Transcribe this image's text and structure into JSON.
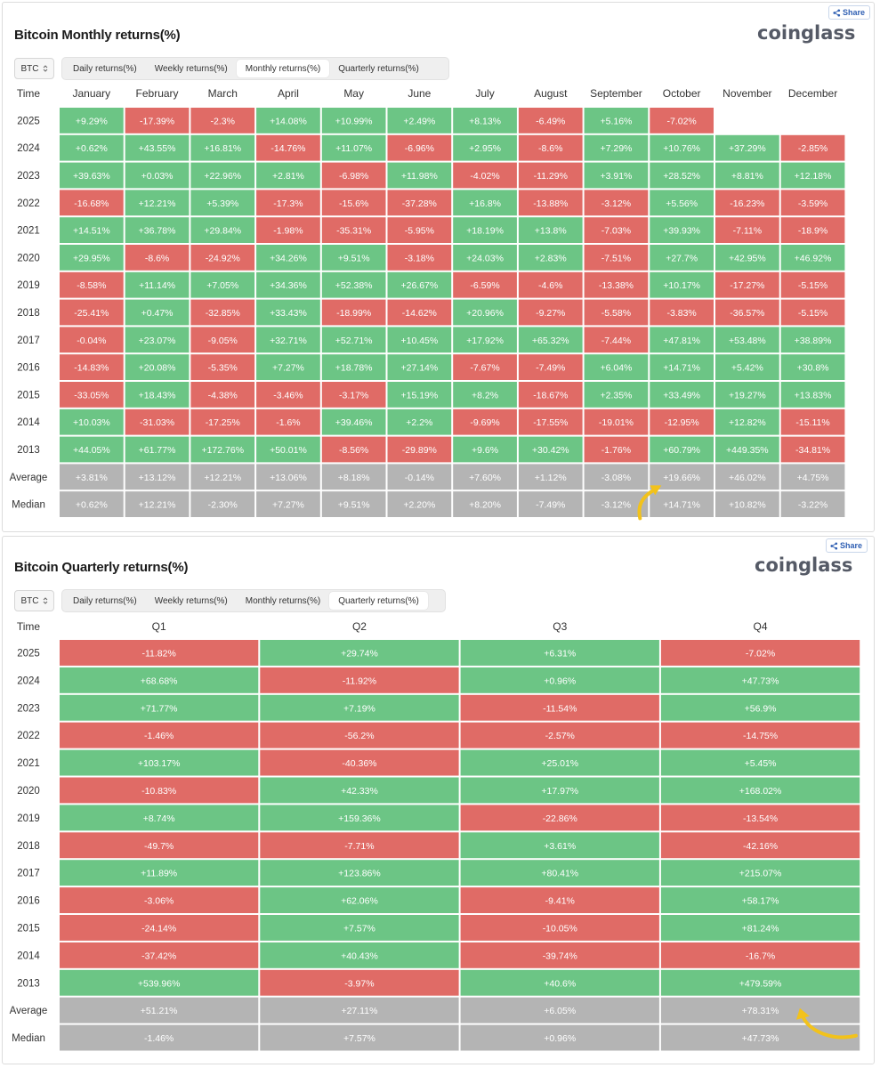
{
  "colors": {
    "positive": "#6cc585",
    "negative": "#e06b66",
    "summary": "#b4b4b4",
    "arrow": "#f2c21b"
  },
  "monthly_panel": {
    "title": "Bitcoin Monthly returns(%)",
    "logo": "coinglass",
    "share_label": "Share",
    "coin": "BTC",
    "tabs": [
      "Daily returns(%)",
      "Weekly returns(%)",
      "Monthly returns(%)",
      "Quarterly returns(%)"
    ],
    "active_tab": 2
  },
  "quarterly_panel": {
    "title": "Bitcoin Quarterly returns(%)",
    "logo": "coinglass",
    "share_label": "Share",
    "coin": "BTC",
    "tabs": [
      "Daily returns(%)",
      "Weekly returns(%)",
      "Monthly returns(%)",
      "Quarterly returns(%)"
    ],
    "active_tab": 3
  },
  "chart_data": [
    {
      "type": "table",
      "title": "Bitcoin Monthly returns(%)",
      "row_header": "Time",
      "columns": [
        "January",
        "February",
        "March",
        "April",
        "May",
        "June",
        "July",
        "August",
        "September",
        "October",
        "November",
        "December"
      ],
      "rows": [
        {
          "label": "2025",
          "values": [
            "+9.29%",
            "-17.39%",
            "-2.3%",
            "+14.08%",
            "+10.99%",
            "+2.49%",
            "+8.13%",
            "-6.49%",
            "+5.16%",
            "-7.02%",
            "",
            ""
          ]
        },
        {
          "label": "2024",
          "values": [
            "+0.62%",
            "+43.55%",
            "+16.81%",
            "-14.76%",
            "+11.07%",
            "-6.96%",
            "+2.95%",
            "-8.6%",
            "+7.29%",
            "+10.76%",
            "+37.29%",
            "-2.85%"
          ]
        },
        {
          "label": "2023",
          "values": [
            "+39.63%",
            "+0.03%",
            "+22.96%",
            "+2.81%",
            "-6.98%",
            "+11.98%",
            "-4.02%",
            "-11.29%",
            "+3.91%",
            "+28.52%",
            "+8.81%",
            "+12.18%"
          ]
        },
        {
          "label": "2022",
          "values": [
            "-16.68%",
            "+12.21%",
            "+5.39%",
            "-17.3%",
            "-15.6%",
            "-37.28%",
            "+16.8%",
            "-13.88%",
            "-3.12%",
            "+5.56%",
            "-16.23%",
            "-3.59%"
          ]
        },
        {
          "label": "2021",
          "values": [
            "+14.51%",
            "+36.78%",
            "+29.84%",
            "-1.98%",
            "-35.31%",
            "-5.95%",
            "+18.19%",
            "+13.8%",
            "-7.03%",
            "+39.93%",
            "-7.11%",
            "-18.9%"
          ]
        },
        {
          "label": "2020",
          "values": [
            "+29.95%",
            "-8.6%",
            "-24.92%",
            "+34.26%",
            "+9.51%",
            "-3.18%",
            "+24.03%",
            "+2.83%",
            "-7.51%",
            "+27.7%",
            "+42.95%",
            "+46.92%"
          ]
        },
        {
          "label": "2019",
          "values": [
            "-8.58%",
            "+11.14%",
            "+7.05%",
            "+34.36%",
            "+52.38%",
            "+26.67%",
            "-6.59%",
            "-4.6%",
            "-13.38%",
            "+10.17%",
            "-17.27%",
            "-5.15%"
          ]
        },
        {
          "label": "2018",
          "values": [
            "-25.41%",
            "+0.47%",
            "-32.85%",
            "+33.43%",
            "-18.99%",
            "-14.62%",
            "+20.96%",
            "-9.27%",
            "-5.58%",
            "-3.83%",
            "-36.57%",
            "-5.15%"
          ]
        },
        {
          "label": "2017",
          "values": [
            "-0.04%",
            "+23.07%",
            "-9.05%",
            "+32.71%",
            "+52.71%",
            "+10.45%",
            "+17.92%",
            "+65.32%",
            "-7.44%",
            "+47.81%",
            "+53.48%",
            "+38.89%"
          ]
        },
        {
          "label": "2016",
          "values": [
            "-14.83%",
            "+20.08%",
            "-5.35%",
            "+7.27%",
            "+18.78%",
            "+27.14%",
            "-7.67%",
            "-7.49%",
            "+6.04%",
            "+14.71%",
            "+5.42%",
            "+30.8%"
          ]
        },
        {
          "label": "2015",
          "values": [
            "-33.05%",
            "+18.43%",
            "-4.38%",
            "-3.46%",
            "-3.17%",
            "+15.19%",
            "+8.2%",
            "-18.67%",
            "+2.35%",
            "+33.49%",
            "+19.27%",
            "+13.83%"
          ]
        },
        {
          "label": "2014",
          "values": [
            "+10.03%",
            "-31.03%",
            "-17.25%",
            "-1.6%",
            "+39.46%",
            "+2.2%",
            "-9.69%",
            "-17.55%",
            "-19.01%",
            "-12.95%",
            "+12.82%",
            "-15.11%"
          ]
        },
        {
          "label": "2013",
          "values": [
            "+44.05%",
            "+61.77%",
            "+172.76%",
            "+50.01%",
            "-8.56%",
            "-29.89%",
            "+9.6%",
            "+30.42%",
            "-1.76%",
            "+60.79%",
            "+449.35%",
            "-34.81%"
          ]
        },
        {
          "label": "Average",
          "summary": true,
          "values": [
            "+3.81%",
            "+13.12%",
            "+12.21%",
            "+13.06%",
            "+8.18%",
            "-0.14%",
            "+7.60%",
            "+1.12%",
            "-3.08%",
            "+19.66%",
            "+46.02%",
            "+4.75%"
          ]
        },
        {
          "label": "Median",
          "summary": true,
          "values": [
            "+0.62%",
            "+12.21%",
            "-2.30%",
            "+7.27%",
            "+9.51%",
            "+2.20%",
            "+8.20%",
            "-7.49%",
            "-3.12%",
            "+14.71%",
            "+10.82%",
            "-3.22%"
          ]
        }
      ],
      "highlight": {
        "row": "Average",
        "column": "October"
      }
    },
    {
      "type": "table",
      "title": "Bitcoin Quarterly returns(%)",
      "row_header": "Time",
      "columns": [
        "Q1",
        "Q2",
        "Q3",
        "Q4"
      ],
      "rows": [
        {
          "label": "2025",
          "values": [
            "-11.82%",
            "+29.74%",
            "+6.31%",
            "-7.02%"
          ]
        },
        {
          "label": "2024",
          "values": [
            "+68.68%",
            "-11.92%",
            "+0.96%",
            "+47.73%"
          ]
        },
        {
          "label": "2023",
          "values": [
            "+71.77%",
            "+7.19%",
            "-11.54%",
            "+56.9%"
          ]
        },
        {
          "label": "2022",
          "values": [
            "-1.46%",
            "-56.2%",
            "-2.57%",
            "-14.75%"
          ]
        },
        {
          "label": "2021",
          "values": [
            "+103.17%",
            "-40.36%",
            "+25.01%",
            "+5.45%"
          ]
        },
        {
          "label": "2020",
          "values": [
            "-10.83%",
            "+42.33%",
            "+17.97%",
            "+168.02%"
          ]
        },
        {
          "label": "2019",
          "values": [
            "+8.74%",
            "+159.36%",
            "-22.86%",
            "-13.54%"
          ]
        },
        {
          "label": "2018",
          "values": [
            "-49.7%",
            "-7.71%",
            "+3.61%",
            "-42.16%"
          ]
        },
        {
          "label": "2017",
          "values": [
            "+11.89%",
            "+123.86%",
            "+80.41%",
            "+215.07%"
          ]
        },
        {
          "label": "2016",
          "values": [
            "-3.06%",
            "+62.06%",
            "-9.41%",
            "+58.17%"
          ]
        },
        {
          "label": "2015",
          "values": [
            "-24.14%",
            "+7.57%",
            "-10.05%",
            "+81.24%"
          ]
        },
        {
          "label": "2014",
          "values": [
            "-37.42%",
            "+40.43%",
            "-39.74%",
            "-16.7%"
          ]
        },
        {
          "label": "2013",
          "values": [
            "+539.96%",
            "-3.97%",
            "+40.6%",
            "+479.59%"
          ]
        },
        {
          "label": "Average",
          "summary": true,
          "values": [
            "+51.21%",
            "+27.11%",
            "+6.05%",
            "+78.31%"
          ]
        },
        {
          "label": "Median",
          "summary": true,
          "values": [
            "-1.46%",
            "+7.57%",
            "+0.96%",
            "+47.73%"
          ]
        }
      ],
      "highlight": {
        "row": "Average",
        "column": "Q4"
      }
    }
  ]
}
